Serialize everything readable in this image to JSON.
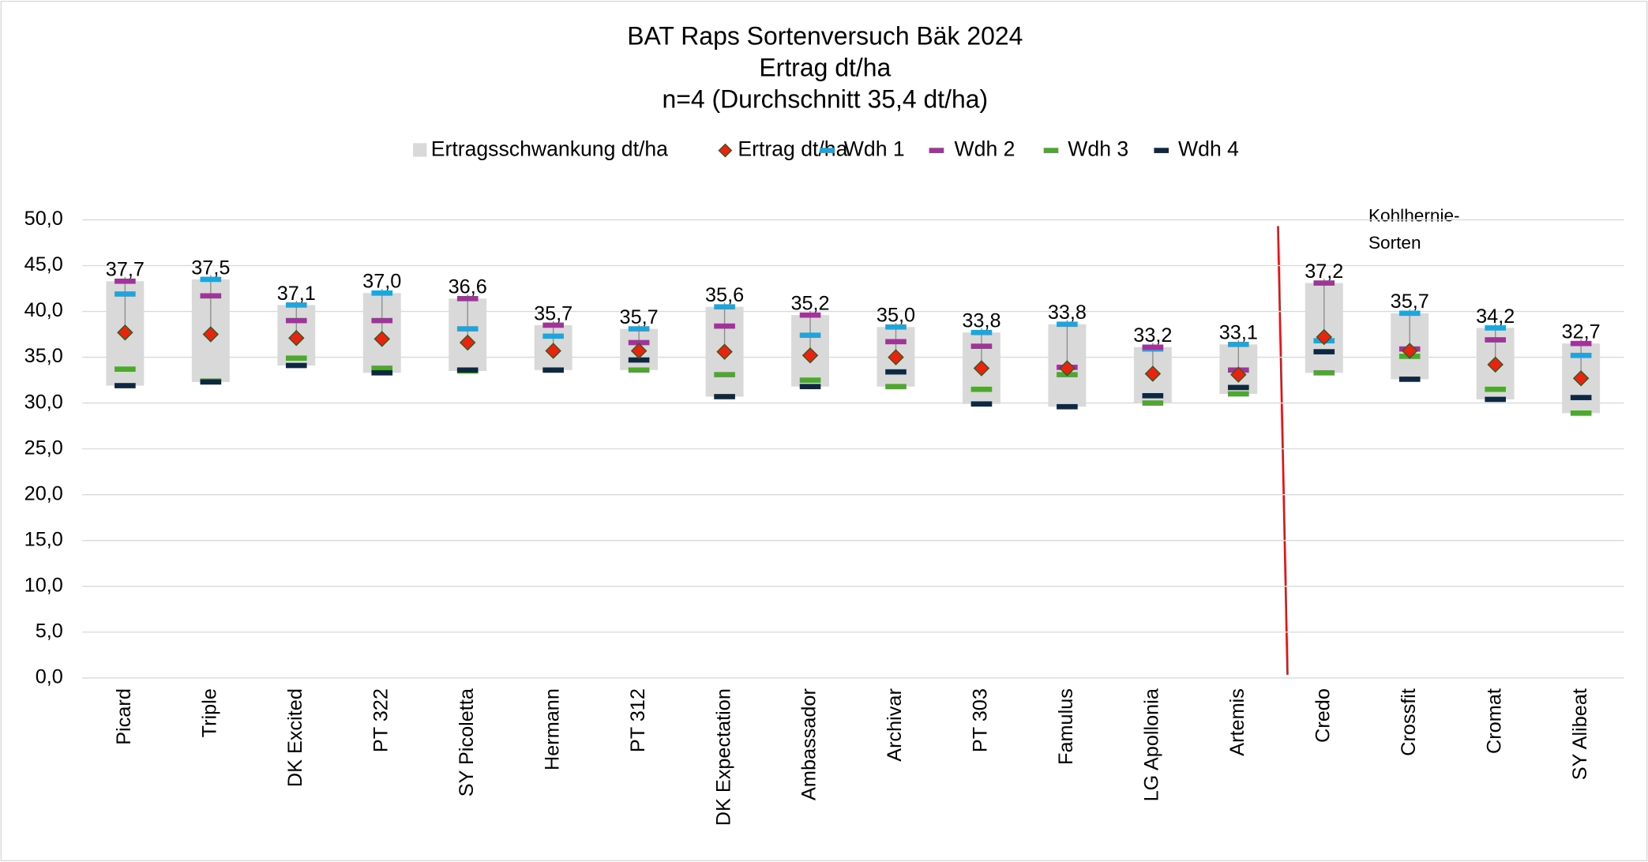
{
  "chart_data": {
    "type": "range-dot",
    "title": "BAT Raps Sortenversuch Bäk 2024",
    "subtitle": [
      "Ertrag dt/ha",
      "n=4 (Durchschnitt 35,4 dt/ha)"
    ],
    "annotation": [
      "Kohlhernie-",
      "Sorten"
    ],
    "categories": [
      "Picard",
      "Triple",
      "DK Excited",
      "PT 322",
      "SY Picoletta",
      "Hermann",
      "PT 312",
      "DK Expectation",
      "Ambassador",
      "Archivar",
      "PT 303",
      "Famulus",
      "LG Apollonia",
      "Artemis",
      "Credo",
      "Crossfit",
      "Cromat",
      "SY Alibeat"
    ],
    "range": {
      "name": "Ertragsschwankung dt/ha",
      "color": "#d9d9d9"
    },
    "series": [
      {
        "name": "Ertrag dt/ha",
        "color": "#e8230f",
        "marker": "diamond",
        "values": [
          37.7,
          37.5,
          37.1,
          37.0,
          36.6,
          35.7,
          35.7,
          35.6,
          35.2,
          35.0,
          33.8,
          33.8,
          33.2,
          33.1,
          37.2,
          35.7,
          34.2,
          32.7
        ],
        "value_labels": [
          "37,7",
          "37,5",
          "37,1",
          "37,0",
          "36,6",
          "35,7",
          "35,7",
          "35,6",
          "35,2",
          "35,0",
          "33,8",
          "33,8",
          "33,2",
          "33,1",
          "37,2",
          "35,7",
          "34,2",
          "32,7"
        ]
      },
      {
        "name": "Wdh 1",
        "color": "#1ea6dc",
        "marker": "dash",
        "values": [
          41.9,
          43.5,
          40.7,
          42.0,
          38.1,
          37.3,
          38.1,
          40.5,
          37.4,
          38.3,
          37.7,
          38.6,
          35.9,
          36.4,
          36.8,
          39.8,
          38.2,
          35.2
        ]
      },
      {
        "name": "Wdh 2",
        "color": "#a0349a",
        "marker": "dash",
        "values": [
          43.3,
          41.7,
          39.0,
          39.0,
          41.4,
          38.5,
          36.6,
          38.4,
          39.6,
          36.7,
          36.2,
          33.9,
          36.1,
          33.6,
          43.1,
          35.9,
          36.9,
          36.5
        ]
      },
      {
        "name": "Wdh 3",
        "color": "#4ea72e",
        "marker": "dash",
        "values": [
          33.7,
          32.4,
          34.9,
          33.8,
          33.5,
          33.6,
          33.6,
          33.1,
          32.5,
          31.8,
          31.5,
          33.1,
          30.0,
          31.0,
          33.3,
          35.1,
          31.5,
          28.9
        ]
      },
      {
        "name": "Wdh 4",
        "color": "#0e2841",
        "marker": "dash",
        "values": [
          31.9,
          32.3,
          34.1,
          33.3,
          33.6,
          33.6,
          34.7,
          30.7,
          31.8,
          33.4,
          29.9,
          29.6,
          30.8,
          31.7,
          35.6,
          32.6,
          30.4,
          30.6
        ]
      }
    ],
    "ylim": [
      0,
      50
    ],
    "yticks": [
      {
        "value": 0,
        "label": "0,0"
      },
      {
        "value": 5,
        "label": "5,0"
      },
      {
        "value": 10,
        "label": "10,0"
      },
      {
        "value": 15,
        "label": "15,0"
      },
      {
        "value": 20,
        "label": "20,0"
      },
      {
        "value": 25,
        "label": "25,0"
      },
      {
        "value": 30,
        "label": "30,0"
      },
      {
        "value": 35,
        "label": "35,0"
      },
      {
        "value": 40,
        "label": "40,0"
      },
      {
        "value": 45,
        "label": "45,0"
      },
      {
        "value": 50,
        "label": "50,0"
      }
    ],
    "grid": true,
    "legend": "top"
  }
}
